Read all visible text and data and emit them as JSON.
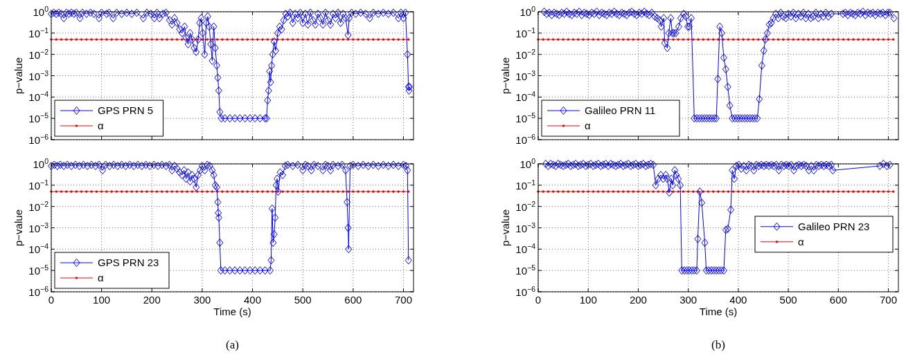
{
  "chart_data": [
    {
      "type": "line",
      "ylabel": "p−value",
      "xlim": [
        0,
        720
      ],
      "xticks": [
        0,
        100,
        200,
        300,
        400,
        500,
        600,
        700
      ],
      "log": "y",
      "ylim": [
        1e-06,
        1
      ],
      "yticks": [
        {
          "value": 1e-06,
          "label": "10$^{−6}$"
        },
        {
          "value": 1e-05,
          "label": "10$^{−5}$"
        },
        {
          "value": 0.0001,
          "label": "10$^{−4}$"
        },
        {
          "value": 0.001,
          "label": "10$^{−3}$"
        },
        {
          "value": 0.01,
          "label": "10$^{−2}$"
        },
        {
          "value": 0.1,
          "label": "10$^{−1}$"
        },
        {
          "value": 1,
          "label": "10$^{0}$"
        }
      ],
      "tick_labels": "y",
      "grid": true,
      "legend": "bottom left",
      "line_style": "solid",
      "series": [
        {
          "name": "GPS PRN 5",
          "color": "#0000ff",
          "marker": "diamond",
          "x": [
            0,
            5,
            10,
            15,
            20,
            25,
            30,
            35,
            40,
            45,
            50,
            57,
            62,
            70,
            78,
            85,
            95,
            100,
            110,
            115,
            123,
            130,
            140,
            150,
            160,
            170,
            183,
            190,
            198,
            205,
            210,
            215,
            222,
            228,
            235,
            240,
            245,
            250,
            255,
            260,
            265,
            268,
            272,
            276,
            280,
            284,
            288,
            292,
            295,
            298,
            301,
            305,
            308,
            311,
            314,
            317,
            320,
            323,
            326,
            329,
            331,
            333,
            335,
            338,
            345,
            355,
            365,
            375,
            385,
            395,
            405,
            415,
            425,
            428,
            430,
            432,
            434,
            436,
            438,
            440,
            443,
            446,
            450,
            454,
            458,
            462,
            466,
            470,
            475,
            480,
            485,
            490,
            495,
            500,
            505,
            510,
            515,
            520,
            525,
            530,
            535,
            540,
            545,
            550,
            555,
            560,
            565,
            570,
            575,
            580,
            585,
            590,
            592,
            597,
            605,
            615,
            625,
            633,
            640,
            650,
            660,
            670,
            680,
            690,
            695,
            700,
            704,
            708,
            710,
            711,
            712
          ],
          "values": [
            0.8,
            0.9,
            0.8,
            0.9,
            0.8,
            0.5,
            0.9,
            0.8,
            0.9,
            0.8,
            0.9,
            0.5,
            0.9,
            0.8,
            0.9,
            0.8,
            0.5,
            0.9,
            0.8,
            0.9,
            0.5,
            0.9,
            0.8,
            0.9,
            0.8,
            0.9,
            0.5,
            0.9,
            0.8,
            0.5,
            0.9,
            0.5,
            0.8,
            0.9,
            0.4,
            0.25,
            0.5,
            0.3,
            0.15,
            0.1,
            0.2,
            0.06,
            0.03,
            0.1,
            0.05,
            0.02,
            0.013,
            0.05,
            0.3,
            0.5,
            0.1,
            0.01,
            0.3,
            0.6,
            0.2,
            0.03,
            0.005,
            0.2,
            0.02,
            0.003,
            0.0008,
            0.0002,
            2e-05,
            1e-05,
            1e-05,
            1e-05,
            1e-05,
            1e-05,
            1e-05,
            1e-05,
            1e-05,
            1e-05,
            1e-05,
            1e-05,
            7e-05,
            0.0002,
            0.0016,
            0.0005,
            0.003,
            0.01,
            0.04,
            0.015,
            0.1,
            0.2,
            0.15,
            0.4,
            0.8,
            0.6,
            0.9,
            0.3,
            0.8,
            0.5,
            0.9,
            0.3,
            0.8,
            0.25,
            0.9,
            0.4,
            0.25,
            0.8,
            0.5,
            0.25,
            0.9,
            0.4,
            0.25,
            0.8,
            0.5,
            0.9,
            0.3,
            0.8,
            0.5,
            0.08,
            0.5,
            0.9,
            0.8,
            0.9,
            0.8,
            0.5,
            0.9,
            0.8,
            0.9,
            0.8,
            0.9,
            0.5,
            0.9,
            0.5,
            0.9,
            0.01,
            0.0003,
            0.0002,
            0.0003
          ]
        },
        {
          "name": "α",
          "color": "#ff0000",
          "marker": "circle",
          "x": [
            0,
            10,
            20,
            30,
            40,
            50,
            60,
            70,
            80,
            90,
            100,
            110,
            120,
            130,
            140,
            150,
            160,
            170,
            180,
            190,
            200,
            210,
            220,
            230,
            240,
            250,
            260,
            270,
            280,
            290,
            300,
            310,
            320,
            330,
            340,
            350,
            360,
            370,
            380,
            390,
            400,
            410,
            420,
            430,
            440,
            450,
            460,
            470,
            480,
            490,
            500,
            510,
            520,
            530,
            540,
            550,
            560,
            570,
            580,
            590,
            600,
            610,
            620,
            630,
            640,
            650,
            660,
            670,
            680,
            690,
            700,
            710
          ],
          "values": [
            0.05,
            0.05,
            0.05,
            0.05,
            0.05,
            0.05,
            0.05,
            0.05,
            0.05,
            0.05,
            0.05,
            0.05,
            0.05,
            0.05,
            0.05,
            0.05,
            0.05,
            0.05,
            0.05,
            0.05,
            0.05,
            0.05,
            0.05,
            0.05,
            0.05,
            0.05,
            0.05,
            0.05,
            0.05,
            0.05,
            0.05,
            0.05,
            0.05,
            0.05,
            0.05,
            0.05,
            0.05,
            0.05,
            0.05,
            0.05,
            0.05,
            0.05,
            0.05,
            0.05,
            0.05,
            0.05,
            0.05,
            0.05,
            0.05,
            0.05,
            0.05,
            0.05,
            0.05,
            0.05,
            0.05,
            0.05,
            0.05,
            0.05,
            0.05,
            0.05,
            0.05,
            0.05,
            0.05,
            0.05,
            0.05,
            0.05,
            0.05,
            0.05,
            0.05,
            0.05,
            0.05,
            0.05
          ]
        }
      ]
    },
    {
      "type": "line",
      "ylabel": "p−value",
      "xlim": [
        0,
        720
      ],
      "xticks": [
        0,
        100,
        200,
        300,
        400,
        500,
        600,
        700
      ],
      "log": "y",
      "ylim": [
        1e-06,
        1
      ],
      "yticks": [
        {
          "value": 1e-06,
          "label": "10$^{−6}$"
        },
        {
          "value": 1e-05,
          "label": "10$^{−5}$"
        },
        {
          "value": 0.0001,
          "label": "10$^{−4}$"
        },
        {
          "value": 0.001,
          "label": "10$^{−3}$"
        },
        {
          "value": 0.01,
          "label": "10$^{−2}$"
        },
        {
          "value": 0.1,
          "label": "10$^{−1}$"
        },
        {
          "value": 1,
          "label": "10$^{0}$"
        }
      ],
      "tick_labels": "y",
      "grid": true,
      "legend": "bottom left",
      "line_style": "solid",
      "series": [
        {
          "name": "Galileo PRN 11",
          "color": "#0000ff",
          "marker": "diamond",
          "x": [
            12,
            17,
            22,
            27,
            32,
            37,
            42,
            47,
            52,
            57,
            62,
            67,
            72,
            77,
            82,
            87,
            92,
            97,
            102,
            107,
            112,
            117,
            122,
            127,
            132,
            137,
            142,
            147,
            152,
            157,
            162,
            167,
            172,
            177,
            182,
            187,
            192,
            197,
            202,
            207,
            212,
            217,
            222,
            227,
            233,
            238,
            243,
            246,
            251,
            253,
            258,
            261,
            265,
            268,
            271,
            275,
            281,
            285,
            291,
            295,
            299,
            302,
            306,
            312,
            317,
            322,
            327,
            332,
            337,
            342,
            347,
            352,
            356,
            359,
            363,
            367,
            371,
            375,
            379,
            383,
            388,
            393,
            398,
            403,
            408,
            413,
            418,
            423,
            428,
            433,
            438,
            442,
            447,
            451,
            454,
            458,
            462,
            466,
            470,
            475,
            480,
            485,
            490,
            495,
            500,
            505,
            510,
            515,
            520,
            525,
            530,
            535,
            540,
            545,
            550,
            555,
            560,
            565,
            570,
            575,
            580,
            586,
            609,
            614,
            619,
            624,
            629,
            634,
            639,
            644,
            649,
            654,
            659,
            664,
            669,
            674,
            679,
            684,
            689,
            694,
            699,
            703,
            711
          ],
          "values": [
            1.0,
            0.8,
            0.9,
            0.7,
            0.9,
            0.8,
            0.7,
            0.9,
            0.8,
            1.0,
            0.8,
            0.7,
            0.9,
            0.8,
            1.0,
            0.7,
            0.9,
            0.8,
            0.7,
            0.9,
            0.8,
            1.0,
            0.7,
            0.9,
            0.8,
            0.7,
            0.9,
            0.8,
            1.0,
            0.8,
            0.7,
            0.9,
            0.8,
            0.7,
            0.9,
            1.0,
            0.8,
            0.7,
            0.9,
            0.8,
            1.0,
            0.8,
            0.7,
            0.9,
            0.6,
            0.5,
            0.4,
            0.2,
            0.5,
            0.034,
            0.02,
            0.1,
            0.5,
            0.1,
            0.1,
            0.1,
            0.2,
            0.5,
            0.8,
            0.6,
            0.2,
            0.2,
            0.5,
            1e-05,
            1e-05,
            1e-05,
            1e-05,
            1e-05,
            1e-05,
            1e-05,
            1e-05,
            1e-05,
            1e-05,
            0.0007,
            0.2,
            0.1,
            0.007,
            0.002,
            0.0003,
            4e-05,
            1e-05,
            1e-05,
            1e-05,
            1e-05,
            1e-05,
            1e-05,
            1e-05,
            1e-05,
            1e-05,
            1e-05,
            1e-05,
            8e-05,
            0.003,
            0.015,
            0.05,
            0.1,
            0.25,
            0.3,
            0.5,
            0.8,
            0.5,
            0.9,
            0.6,
            0.5,
            0.8,
            0.6,
            0.9,
            0.5,
            0.8,
            0.6,
            0.9,
            0.5,
            0.8,
            0.5,
            0.6,
            0.9,
            0.5,
            0.8,
            0.6,
            0.9,
            0.6,
            0.8,
            0.8,
            0.9,
            0.7,
            0.9,
            0.8,
            0.7,
            0.9,
            0.8,
            1.0,
            0.7,
            0.9,
            0.8,
            0.9,
            0.7,
            0.9,
            0.8,
            0.9,
            0.7,
            0.9,
            0.9,
            0.5
          ]
        },
        {
          "name": "α",
          "color": "#ff0000",
          "marker": "circle",
          "x": [
            0,
            10,
            20,
            30,
            40,
            50,
            60,
            70,
            80,
            90,
            100,
            110,
            120,
            130,
            140,
            150,
            160,
            170,
            180,
            190,
            200,
            210,
            220,
            230,
            240,
            250,
            260,
            270,
            280,
            290,
            300,
            310,
            320,
            330,
            340,
            350,
            360,
            370,
            380,
            390,
            400,
            410,
            420,
            430,
            440,
            450,
            460,
            470,
            480,
            490,
            500,
            510,
            520,
            530,
            540,
            550,
            560,
            570,
            580,
            590,
            600,
            610,
            620,
            630,
            640,
            650,
            660,
            670,
            680,
            690,
            700,
            710
          ],
          "values": [
            0.05,
            0.05,
            0.05,
            0.05,
            0.05,
            0.05,
            0.05,
            0.05,
            0.05,
            0.05,
            0.05,
            0.05,
            0.05,
            0.05,
            0.05,
            0.05,
            0.05,
            0.05,
            0.05,
            0.05,
            0.05,
            0.05,
            0.05,
            0.05,
            0.05,
            0.05,
            0.05,
            0.05,
            0.05,
            0.05,
            0.05,
            0.05,
            0.05,
            0.05,
            0.05,
            0.05,
            0.05,
            0.05,
            0.05,
            0.05,
            0.05,
            0.05,
            0.05,
            0.05,
            0.05,
            0.05,
            0.05,
            0.05,
            0.05,
            0.05,
            0.05,
            0.05,
            0.05,
            0.05,
            0.05,
            0.05,
            0.05,
            0.05,
            0.05,
            0.05,
            0.05,
            0.05,
            0.05,
            0.05,
            0.05,
            0.05,
            0.05,
            0.05,
            0.05,
            0.05,
            0.05,
            0.05
          ]
        }
      ]
    },
    {
      "type": "line",
      "xlabel": "Time (s)",
      "ylabel": "p−value",
      "annotations": [
        "(a)"
      ],
      "xlim": [
        0,
        720
      ],
      "xticks": [
        0,
        100,
        200,
        300,
        400,
        500,
        600,
        700
      ],
      "log": "y",
      "ylim": [
        1e-06,
        1
      ],
      "yticks": [
        {
          "value": 1e-06,
          "label": "10$^{−6}$"
        },
        {
          "value": 1e-05,
          "label": "10$^{−5}$"
        },
        {
          "value": 0.0001,
          "label": "10$^{−4}$"
        },
        {
          "value": 0.001,
          "label": "10$^{−3}$"
        },
        {
          "value": 0.01,
          "label": "10$^{−2}$"
        },
        {
          "value": 0.1,
          "label": "10$^{−1}$"
        },
        {
          "value": 1,
          "label": "10$^{0}$"
        }
      ],
      "grid": true,
      "legend": "bottom left",
      "line_style": "solid",
      "series": [
        {
          "name": "GPS PRN 23",
          "color": "#0000ff",
          "marker": "diamond",
          "x": [
            0,
            6,
            12,
            18,
            25,
            32,
            40,
            48,
            56,
            64,
            72,
            80,
            88,
            95,
            102,
            108,
            116,
            124,
            132,
            140,
            148,
            156,
            164,
            172,
            180,
            188,
            196,
            204,
            212,
            220,
            228,
            235,
            240,
            245,
            250,
            255,
            260,
            264,
            268,
            272,
            276,
            280,
            284,
            288,
            292,
            296,
            300,
            305,
            310,
            315,
            320,
            323,
            326,
            329,
            331,
            332,
            333,
            335,
            337,
            345,
            355,
            365,
            375,
            385,
            395,
            405,
            415,
            425,
            435,
            437,
            439,
            441,
            443,
            445,
            447,
            449,
            451,
            455,
            460,
            465,
            470,
            480,
            490,
            500,
            505,
            510,
            517,
            522,
            530,
            540,
            545,
            550,
            555,
            560,
            570,
            578,
            585,
            588,
            590,
            591,
            594,
            600,
            610,
            620,
            630,
            640,
            650,
            660,
            670,
            680,
            690,
            700,
            705,
            708,
            710
          ],
          "values": [
            0.8,
            0.9,
            0.8,
            0.9,
            0.8,
            0.9,
            0.8,
            0.9,
            0.8,
            0.9,
            0.8,
            0.9,
            0.8,
            0.9,
            0.5,
            0.9,
            0.8,
            0.9,
            0.8,
            0.9,
            0.8,
            0.9,
            0.8,
            0.9,
            0.8,
            0.9,
            0.8,
            0.9,
            0.8,
            0.9,
            0.8,
            0.9,
            0.5,
            0.8,
            0.6,
            0.4,
            0.3,
            0.5,
            0.2,
            0.4,
            0.15,
            0.3,
            0.2,
            0.08,
            0.3,
            0.5,
            0.8,
            0.5,
            0.9,
            0.8,
            0.5,
            0.3,
            0.1,
            0.08,
            0.016,
            0.005,
            0.003,
            0.0002,
            1e-05,
            1e-05,
            1e-05,
            1e-05,
            1e-05,
            1e-05,
            1e-05,
            1e-05,
            1e-05,
            1e-05,
            1e-05,
            3e-05,
            0.008,
            0.0002,
            0.0005,
            0.003,
            0.1,
            0.2,
            0.05,
            0.4,
            0.3,
            0.8,
            0.9,
            0.8,
            0.9,
            0.5,
            0.9,
            0.8,
            0.5,
            0.9,
            0.8,
            0.5,
            0.9,
            0.8,
            0.5,
            0.9,
            0.8,
            0.9,
            0.5,
            0.016,
            0.001,
            0.0001,
            0.8,
            0.9,
            0.8,
            0.9,
            0.8,
            0.9,
            0.8,
            0.9,
            0.8,
            0.9,
            0.8,
            0.9,
            0.8,
            0.5,
            3e-05
          ]
        },
        {
          "name": "α",
          "color": "#ff0000",
          "marker": "circle",
          "x": [
            0,
            10,
            20,
            30,
            40,
            50,
            60,
            70,
            80,
            90,
            100,
            110,
            120,
            130,
            140,
            150,
            160,
            170,
            180,
            190,
            200,
            210,
            220,
            230,
            240,
            250,
            260,
            270,
            280,
            290,
            300,
            310,
            320,
            330,
            340,
            350,
            360,
            370,
            380,
            390,
            400,
            410,
            420,
            430,
            440,
            450,
            460,
            470,
            480,
            490,
            500,
            510,
            520,
            530,
            540,
            550,
            560,
            570,
            580,
            590,
            600,
            610,
            620,
            630,
            640,
            650,
            660,
            670,
            680,
            690,
            700,
            710
          ],
          "values": [
            0.05,
            0.05,
            0.05,
            0.05,
            0.05,
            0.05,
            0.05,
            0.05,
            0.05,
            0.05,
            0.05,
            0.05,
            0.05,
            0.05,
            0.05,
            0.05,
            0.05,
            0.05,
            0.05,
            0.05,
            0.05,
            0.05,
            0.05,
            0.05,
            0.05,
            0.05,
            0.05,
            0.05,
            0.05,
            0.05,
            0.05,
            0.05,
            0.05,
            0.05,
            0.05,
            0.05,
            0.05,
            0.05,
            0.05,
            0.05,
            0.05,
            0.05,
            0.05,
            0.05,
            0.05,
            0.05,
            0.05,
            0.05,
            0.05,
            0.05,
            0.05,
            0.05,
            0.05,
            0.05,
            0.05,
            0.05,
            0.05,
            0.05,
            0.05,
            0.05,
            0.05,
            0.05,
            0.05,
            0.05,
            0.05,
            0.05,
            0.05,
            0.05,
            0.05,
            0.05,
            0.05,
            0.05
          ]
        }
      ]
    },
    {
      "type": "line",
      "xlabel": "Time (s)",
      "ylabel": "p−value",
      "annotations": [
        "(b)"
      ],
      "xlim": [
        0,
        720
      ],
      "xticks": [
        0,
        100,
        200,
        300,
        400,
        500,
        600,
        700
      ],
      "log": "y",
      "ylim": [
        1e-06,
        1
      ],
      "yticks": [
        {
          "value": 1e-06,
          "label": "10$^{−6}$"
        },
        {
          "value": 1e-05,
          "label": "10$^{−5}$"
        },
        {
          "value": 0.0001,
          "label": "10$^{−4}$"
        },
        {
          "value": 0.001,
          "label": "10$^{−3}$"
        },
        {
          "value": 0.01,
          "label": "10$^{−2}$"
        },
        {
          "value": 0.1,
          "label": "10$^{−1}$"
        },
        {
          "value": 1,
          "label": "10$^{0}$"
        }
      ],
      "grid": true,
      "legend": "right",
      "line_style": "solid",
      "series": [
        {
          "name": "Galileo PRN 23",
          "color": "#0000ff",
          "marker": "diamond",
          "x": [
            15,
            20,
            25,
            30,
            35,
            40,
            45,
            50,
            55,
            60,
            65,
            70,
            75,
            80,
            85,
            90,
            95,
            100,
            105,
            110,
            115,
            120,
            125,
            130,
            135,
            140,
            145,
            150,
            155,
            160,
            165,
            170,
            175,
            180,
            185,
            190,
            195,
            200,
            205,
            210,
            215,
            220,
            225,
            230,
            235,
            240,
            245,
            250,
            255,
            258,
            262,
            266,
            269,
            273,
            276,
            280,
            284,
            287,
            292,
            297,
            302,
            307,
            312,
            317,
            319,
            323,
            327,
            333,
            336,
            341,
            346,
            351,
            356,
            361,
            366,
            371,
            375,
            379,
            385,
            388,
            392,
            396,
            401,
            406,
            411,
            416,
            421,
            426,
            431,
            436,
            441,
            446,
            451,
            456,
            461,
            466,
            471,
            476,
            481,
            486,
            491,
            496,
            501,
            506,
            511,
            516,
            521,
            526,
            531,
            536,
            541,
            546,
            551,
            556,
            561,
            566,
            571,
            576,
            581,
            586,
            589,
            683,
            690,
            697,
            703
          ],
          "values": [
            1.0,
            0.8,
            1.0,
            0.9,
            0.8,
            1.0,
            0.9,
            0.8,
            0.9,
            1.0,
            0.8,
            0.9,
            1.0,
            0.8,
            0.9,
            1.0,
            0.8,
            0.9,
            1.0,
            0.8,
            0.9,
            1.0,
            0.8,
            0.9,
            1.0,
            0.8,
            1.0,
            0.9,
            0.8,
            0.9,
            1.0,
            0.8,
            0.9,
            1.0,
            0.8,
            0.9,
            1.0,
            0.8,
            0.9,
            1.0,
            0.8,
            0.9,
            1.0,
            0.9,
            0.1,
            0.2,
            0.3,
            0.2,
            0.3,
            0.2,
            0.045,
            0.2,
            0.1,
            0.5,
            0.3,
            0.2,
            0.1,
            1e-05,
            1e-05,
            1e-05,
            1e-05,
            1e-05,
            1e-05,
            1e-05,
            0.0003,
            0.05,
            0.015,
            0.0002,
            1e-05,
            1e-05,
            1e-05,
            1e-05,
            1e-05,
            1e-05,
            1e-05,
            1e-05,
            0.0008,
            0.0009,
            0.007,
            0.5,
            0.2,
            0.8,
            0.9,
            0.6,
            0.8,
            0.5,
            0.9,
            0.8,
            0.5,
            0.9,
            0.8,
            0.9,
            0.8,
            0.9,
            0.8,
            0.9,
            0.8,
            0.9,
            0.5,
            0.9,
            0.8,
            0.9,
            0.8,
            0.9,
            0.5,
            0.8,
            0.9,
            0.8,
            0.9,
            0.8,
            0.5,
            0.8,
            0.5,
            0.9,
            0.8,
            0.9,
            0.8,
            0.9,
            0.8,
            0.9,
            0.5,
            0.8,
            1.0,
            0.8,
            0.9
          ]
        },
        {
          "name": "α",
          "color": "#ff0000",
          "marker": "circle",
          "x": [
            0,
            10,
            20,
            30,
            40,
            50,
            60,
            70,
            80,
            90,
            100,
            110,
            120,
            130,
            140,
            150,
            160,
            170,
            180,
            190,
            200,
            210,
            220,
            230,
            240,
            250,
            260,
            270,
            280,
            290,
            300,
            310,
            320,
            330,
            340,
            350,
            360,
            370,
            380,
            390,
            400,
            410,
            420,
            430,
            440,
            450,
            460,
            470,
            480,
            490,
            500,
            510,
            520,
            530,
            540,
            550,
            560,
            570,
            580,
            590,
            600,
            610,
            620,
            630,
            640,
            650,
            660,
            670,
            680,
            690,
            700,
            710
          ],
          "values": [
            0.05,
            0.05,
            0.05,
            0.05,
            0.05,
            0.05,
            0.05,
            0.05,
            0.05,
            0.05,
            0.05,
            0.05,
            0.05,
            0.05,
            0.05,
            0.05,
            0.05,
            0.05,
            0.05,
            0.05,
            0.05,
            0.05,
            0.05,
            0.05,
            0.05,
            0.05,
            0.05,
            0.05,
            0.05,
            0.05,
            0.05,
            0.05,
            0.05,
            0.05,
            0.05,
            0.05,
            0.05,
            0.05,
            0.05,
            0.05,
            0.05,
            0.05,
            0.05,
            0.05,
            0.05,
            0.05,
            0.05,
            0.05,
            0.05,
            0.05,
            0.05,
            0.05,
            0.05,
            0.05,
            0.05,
            0.05,
            0.05,
            0.05,
            0.05,
            0.05,
            0.05,
            0.05,
            0.05,
            0.05,
            0.05,
            0.05,
            0.05,
            0.05,
            0.05,
            0.05,
            0.05,
            0.05
          ]
        }
      ]
    }
  ]
}
